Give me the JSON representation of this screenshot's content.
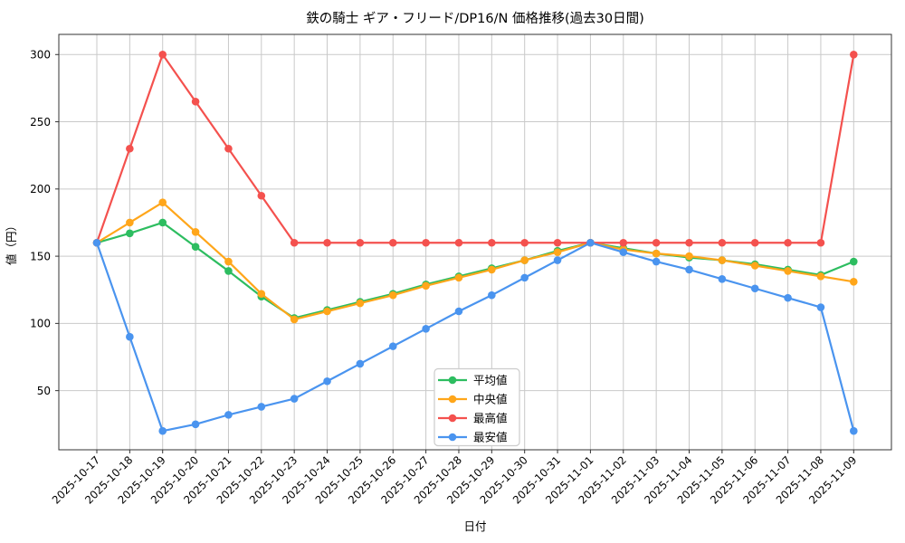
{
  "chart_data": {
    "type": "line",
    "title": "鉄の騎士 ギア・フリード/DP16/N 価格推移(過去30日間)",
    "xlabel": "日付",
    "ylabel": "値（円）",
    "x": [
      "2025-10-17",
      "2025-10-18",
      "2025-10-19",
      "2025-10-20",
      "2025-10-21",
      "2025-10-22",
      "2025-10-23",
      "2025-10-24",
      "2025-10-25",
      "2025-10-26",
      "2025-10-27",
      "2025-10-28",
      "2025-10-29",
      "2025-10-30",
      "2025-10-31",
      "2025-11-01",
      "2025-11-02",
      "2025-11-03",
      "2025-11-04",
      "2025-11-05",
      "2025-11-06",
      "2025-11-07",
      "2025-11-08",
      "2025-11-09"
    ],
    "yticks": [
      50,
      100,
      150,
      200,
      250,
      300
    ],
    "ylim": [
      6,
      315
    ],
    "grid": true,
    "legend_position": "lower-center",
    "series": [
      {
        "name": "平均値",
        "color": "#2dbd60",
        "values": [
          160,
          167,
          175,
          157,
          139,
          120,
          104,
          110,
          116,
          122,
          129,
          135,
          141,
          147,
          154,
          160,
          156,
          152,
          149,
          147,
          144,
          140,
          136,
          146
        ]
      },
      {
        "name": "中央値",
        "color": "#ffa61a",
        "values": [
          160,
          175,
          190,
          168,
          146,
          122,
          103,
          109,
          115,
          121,
          128,
          134,
          140,
          147,
          153,
          160,
          155,
          152,
          150,
          147,
          143,
          139,
          135,
          131
        ]
      },
      {
        "name": "最高値",
        "color": "#f4514e",
        "values": [
          160,
          230,
          300,
          265,
          230,
          195,
          160,
          160,
          160,
          160,
          160,
          160,
          160,
          160,
          160,
          160,
          160,
          160,
          160,
          160,
          160,
          160,
          160,
          300
        ]
      },
      {
        "name": "最安値",
        "color": "#4a94ef",
        "values": [
          160,
          90,
          20,
          25,
          32,
          38,
          44,
          57,
          70,
          83,
          96,
          109,
          121,
          134,
          147,
          160,
          153,
          146,
          140,
          133,
          126,
          119,
          112,
          20
        ]
      }
    ],
    "styles": {
      "grid_color": "#c9c9c9",
      "spine_color": "#333333",
      "legend_border": "#cccccc",
      "background": "#ffffff"
    }
  }
}
